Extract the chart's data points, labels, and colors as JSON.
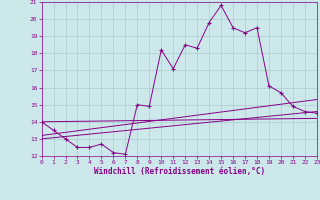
{
  "title": "",
  "xlabel": "Windchill (Refroidissement éolien,°C)",
  "ylabel": "",
  "bg_color": "#cce8ea",
  "line_color": "#880088",
  "grid_color": "#aacccc",
  "xlim": [
    0,
    23
  ],
  "ylim": [
    12,
    21
  ],
  "xticks": [
    0,
    1,
    2,
    3,
    4,
    5,
    6,
    7,
    8,
    9,
    10,
    11,
    12,
    13,
    14,
    15,
    16,
    17,
    18,
    19,
    20,
    21,
    22,
    23
  ],
  "yticks": [
    12,
    13,
    14,
    15,
    16,
    17,
    18,
    19,
    20,
    21
  ],
  "main_x": [
    0,
    1,
    2,
    3,
    4,
    5,
    6,
    7,
    8,
    9,
    10,
    11,
    12,
    13,
    14,
    15,
    16,
    17,
    18,
    19,
    20,
    21,
    22,
    23
  ],
  "main_y": [
    14.0,
    13.5,
    13.0,
    12.5,
    12.5,
    12.7,
    12.2,
    12.1,
    15.0,
    14.9,
    18.2,
    17.1,
    18.5,
    18.3,
    19.8,
    20.8,
    19.5,
    19.2,
    19.5,
    16.1,
    15.7,
    14.9,
    14.6,
    14.5
  ],
  "line1_x": [
    0,
    23
  ],
  "line1_y": [
    14.0,
    14.2
  ],
  "line2_x": [
    0,
    23
  ],
  "line2_y": [
    13.2,
    15.3
  ],
  "line3_x": [
    0,
    23
  ],
  "line3_y": [
    13.0,
    14.6
  ]
}
